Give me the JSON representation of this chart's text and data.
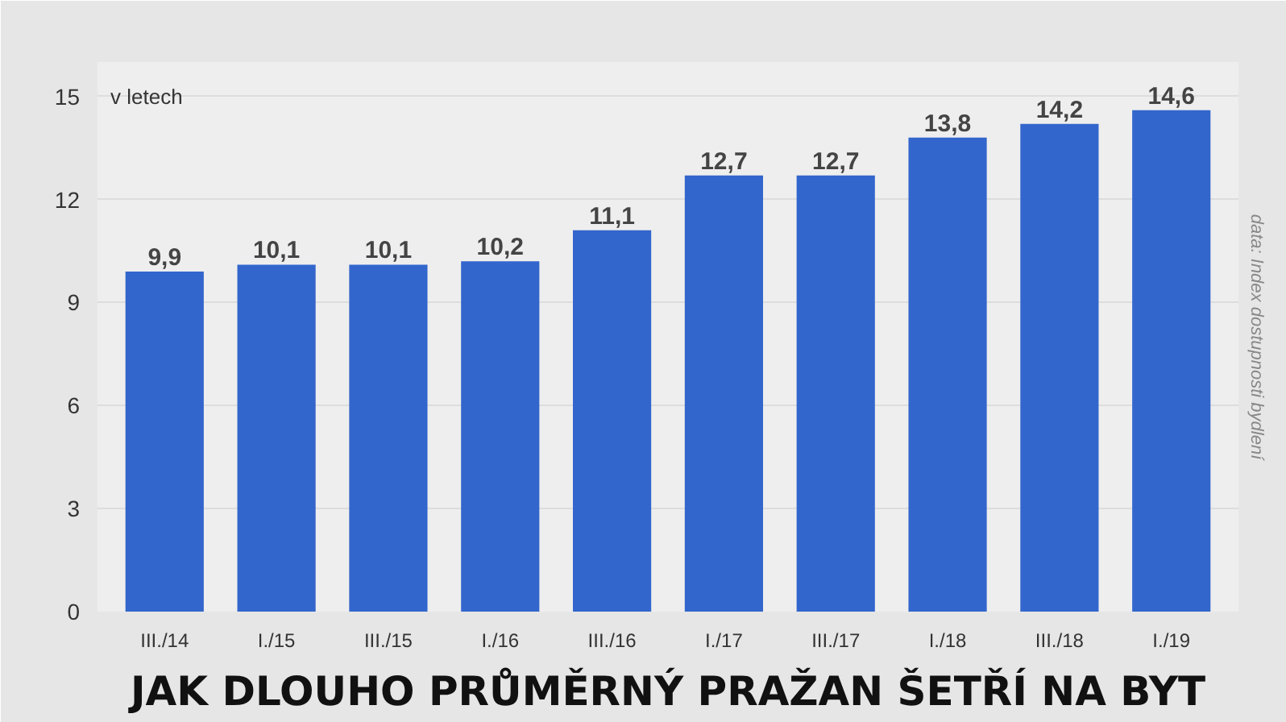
{
  "chart_data": {
    "type": "bar",
    "title": "JAK DLOUHO PRŮMĚRNÝ PRAŽAN ŠETŘÍ NA BYT",
    "ylabel": "v letech",
    "annotations": [
      "data: Index dostupnosti bydlení"
    ],
    "categories": [
      "III./14",
      "I./15",
      "III./15",
      "I./16",
      "III./16",
      "I./17",
      "III./17",
      "I./18",
      "III./18",
      "I./19"
    ],
    "values": [
      9.9,
      10.1,
      10.1,
      10.2,
      11.1,
      12.7,
      12.7,
      13.8,
      14.2,
      14.6
    ],
    "value_labels": [
      "9,9",
      "10,1",
      "10,1",
      "10,2",
      "11,1",
      "12,7",
      "12,7",
      "13,8",
      "14,2",
      "14,6"
    ],
    "color": "#3366cc",
    "ylim": [
      0,
      16
    ],
    "yticks": [
      0,
      3,
      6,
      9,
      12,
      15
    ],
    "grid": "y"
  }
}
